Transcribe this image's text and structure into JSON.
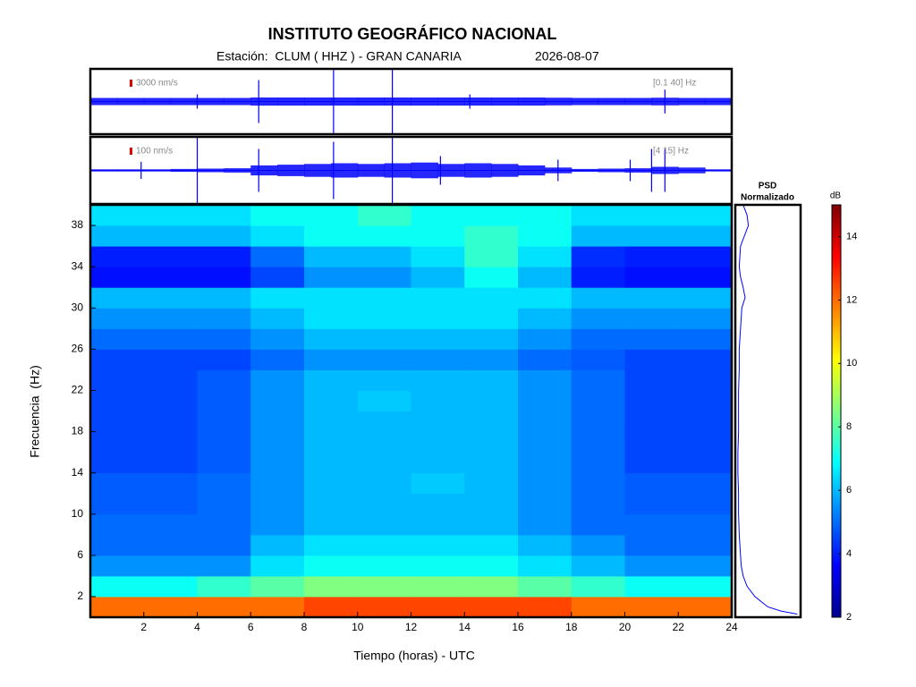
{
  "title": "INSTITUTO GEOGRÁFICO NACIONAL",
  "station": "Estación:  CLUM ( HHZ ) - GRAN CANARIA",
  "date": "2026-08-07",
  "chart_data": [
    {
      "type": "trace",
      "color": "#0000ff",
      "xlim": [
        0,
        24
      ],
      "scale": {
        "value": 3000,
        "label": "3000 nm/s"
      },
      "band": "[0.1 40] Hz",
      "x": [
        0.5,
        1.5,
        2.5,
        3.5,
        4.5,
        5.5,
        6.5,
        7.5,
        8.5,
        9.5,
        10.5,
        11.5,
        12.5,
        13.5,
        14.5,
        15.5,
        16.5,
        17.5,
        18.5,
        19.5,
        20.5,
        21.5,
        22.5,
        23.5
      ],
      "values": [
        1500,
        1500,
        1500,
        1500,
        1500,
        1500,
        1700,
        1700,
        1700,
        1700,
        1700,
        1700,
        1700,
        1700,
        1700,
        1700,
        1700,
        1600,
        1500,
        1500,
        1500,
        1600,
        1500,
        1500
      ],
      "spikes": {
        "x": [
          4.0,
          6.3,
          9.1,
          11.3,
          14.2,
          21.5
        ],
        "values": [
          3000,
          9000,
          15000,
          30000,
          3000,
          5000
        ]
      }
    },
    {
      "type": "trace",
      "color": "#0000ff",
      "xlim": [
        0,
        24
      ],
      "scale": {
        "value": 100,
        "label": "100 nm/s"
      },
      "band": "[4 15] Hz",
      "x": [
        0.5,
        1.5,
        2.5,
        3.5,
        4.5,
        5.5,
        6.5,
        7.5,
        8.5,
        9.5,
        10.5,
        11.5,
        12.5,
        13.5,
        14.5,
        15.5,
        16.5,
        17.5,
        18.5,
        19.5,
        20.5,
        21.5,
        22.5,
        23.5
      ],
      "values": [
        15,
        15,
        15,
        20,
        25,
        30,
        70,
        80,
        90,
        100,
        90,
        100,
        110,
        90,
        100,
        90,
        70,
        40,
        20,
        25,
        30,
        50,
        40,
        15
      ],
      "spikes": {
        "x": [
          1.9,
          4.0,
          6.3,
          9.1,
          11.3,
          13.1,
          17.5,
          20.2,
          21.0,
          21.5
        ],
        "values": [
          120,
          500,
          300,
          400,
          500,
          200,
          150,
          150,
          300,
          300
        ]
      }
    },
    {
      "type": "heatmap",
      "xlabel": "Tiempo (horas) - UTC",
      "ylabel": "Frecuencia  (Hz)",
      "xlim": [
        0,
        24
      ],
      "ylim": [
        0,
        40
      ],
      "xticks": [
        2,
        4,
        6,
        8,
        10,
        12,
        14,
        16,
        18,
        20,
        22,
        24
      ],
      "yticks": [
        2,
        6,
        10,
        14,
        18,
        22,
        26,
        30,
        34,
        38
      ],
      "x_bins": [
        0,
        2,
        4,
        6,
        8,
        10,
        12,
        14,
        16,
        18,
        20,
        22,
        24
      ],
      "y_bins": [
        0,
        2,
        4,
        6,
        8,
        10,
        12,
        14,
        16,
        18,
        20,
        22,
        24,
        26,
        28,
        30,
        32,
        34,
        36,
        38,
        40
      ],
      "values": [
        [
          12,
          12,
          12,
          12,
          12.5,
          12.5,
          12.5,
          12.5,
          12.5,
          12,
          12,
          12
        ],
        [
          7,
          7,
          7.5,
          8,
          8.5,
          8.5,
          8.5,
          8.5,
          8,
          7.5,
          7,
          7
        ],
        [
          5.5,
          5.5,
          5.5,
          6.5,
          7,
          7,
          7,
          7,
          6.5,
          6,
          5.5,
          5.5
        ],
        [
          5,
          5,
          5,
          6,
          6.5,
          6.5,
          6.5,
          6.5,
          6,
          5.5,
          5,
          5
        ],
        [
          5,
          5,
          5,
          5.5,
          6,
          6,
          6,
          6,
          5.5,
          5,
          5,
          5
        ],
        [
          4.8,
          4.8,
          5,
          5.5,
          6,
          6,
          6,
          6,
          5.5,
          5,
          4.8,
          4.8
        ],
        [
          4.8,
          4.8,
          5,
          5.5,
          6,
          6,
          6.2,
          6,
          5.5,
          5,
          4.8,
          4.8
        ],
        [
          4.5,
          4.5,
          4.8,
          5.5,
          6,
          6,
          6,
          6,
          5.5,
          5,
          4.5,
          4.5
        ],
        [
          4.5,
          4.5,
          4.8,
          5.5,
          6,
          6,
          6,
          6,
          5.5,
          5,
          4.5,
          4.5
        ],
        [
          4.5,
          4.5,
          4.8,
          5.5,
          6,
          6,
          6,
          6,
          5.5,
          5,
          4.5,
          4.5
        ],
        [
          4.5,
          4.5,
          4.8,
          5.5,
          6,
          6.2,
          6,
          6,
          5.5,
          5,
          4.5,
          4.5
        ],
        [
          4.5,
          4.5,
          4.8,
          5.5,
          6,
          6,
          6,
          6,
          5.5,
          5,
          4.5,
          4.5
        ],
        [
          4.5,
          4.5,
          4.5,
          5,
          5.5,
          5.5,
          5.5,
          5.5,
          5,
          4.8,
          4.5,
          4.5
        ],
        [
          5,
          5,
          5,
          5.5,
          6,
          6,
          6,
          6,
          5.5,
          5,
          5,
          5
        ],
        [
          5.5,
          5.5,
          5.5,
          6,
          6.5,
          6.5,
          6.5,
          6.5,
          6,
          5.5,
          5.5,
          5.5
        ],
        [
          6,
          6,
          6,
          6.5,
          6.5,
          6.5,
          6.5,
          6.5,
          6.5,
          6,
          6,
          6
        ],
        [
          3.8,
          3.8,
          3.8,
          4.5,
          5.5,
          5.5,
          6,
          7,
          6,
          4,
          3.8,
          3.8
        ],
        [
          4,
          4,
          4,
          5,
          6,
          6,
          6.5,
          7.5,
          6.5,
          4.2,
          4,
          4
        ],
        [
          6,
          6,
          6,
          6.5,
          7,
          7,
          7,
          7.5,
          7,
          6,
          6,
          6
        ],
        [
          6.5,
          6.5,
          6.5,
          7,
          7,
          7.5,
          7,
          7,
          7,
          6.5,
          6.5,
          6.5
        ]
      ],
      "clim": [
        2,
        15
      ],
      "colormap": "jet",
      "colorbar": {
        "label": "dB",
        "ticks": [
          2,
          4,
          6,
          8,
          10,
          12,
          14
        ]
      }
    },
    {
      "type": "psd",
      "title": [
        "PSD",
        "Normalizado"
      ],
      "color": "#0000ff",
      "xlim": [
        0,
        1
      ],
      "ylim": [
        0,
        40
      ],
      "y": [
        0.3,
        0.6,
        1,
        1.5,
        2,
        3,
        4,
        5,
        6,
        8,
        10,
        12,
        14,
        16,
        18,
        20,
        22,
        24,
        26,
        28,
        30,
        31,
        32,
        33,
        34,
        36,
        38,
        39,
        40
      ],
      "values": [
        0.95,
        0.7,
        0.5,
        0.4,
        0.3,
        0.18,
        0.12,
        0.09,
        0.08,
        0.06,
        0.05,
        0.05,
        0.04,
        0.04,
        0.05,
        0.05,
        0.05,
        0.06,
        0.06,
        0.08,
        0.1,
        0.15,
        0.12,
        0.08,
        0.06,
        0.08,
        0.2,
        0.18,
        0.12
      ]
    }
  ]
}
